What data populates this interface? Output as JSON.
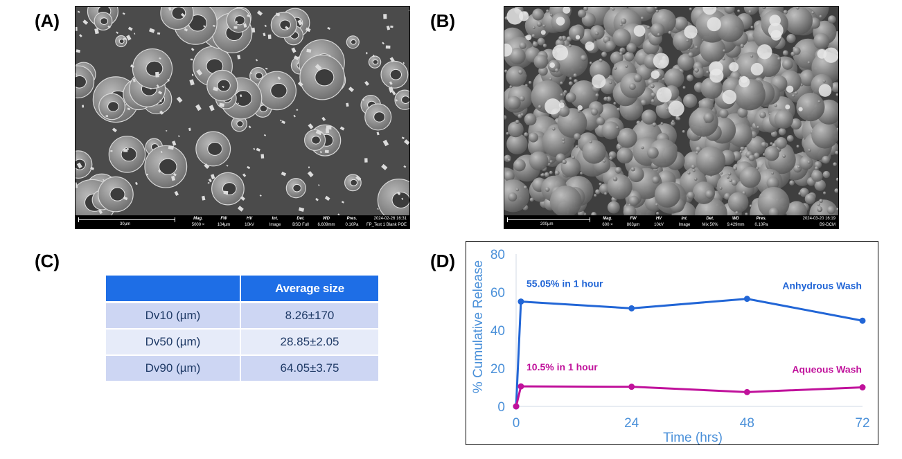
{
  "panels": {
    "a": "(A)",
    "b": "(B)",
    "c": "(C)",
    "d": "(D)"
  },
  "sem_a": {
    "scale_label": "30µm",
    "fields": [
      {
        "label": "Mag.",
        "value": "5000 ×"
      },
      {
        "label": "FW",
        "value": "104µm"
      },
      {
        "label": "HV",
        "value": "10kV"
      },
      {
        "label": "Int.",
        "value": "Image"
      },
      {
        "label": "Det.",
        "value": "BSD Full"
      },
      {
        "label": "WD",
        "value": "6.609mm"
      },
      {
        "label": "Pres.",
        "value": "0.10Pa"
      }
    ],
    "timestamp": "2024-02-26 16:31",
    "sample": "FP_Test 1 Blank POE"
  },
  "sem_b": {
    "scale_label": "200µm",
    "fields": [
      {
        "label": "Mag.",
        "value": "600 ×"
      },
      {
        "label": "FW",
        "value": "863µm"
      },
      {
        "label": "HV",
        "value": "10kV"
      },
      {
        "label": "Int.",
        "value": "Image"
      },
      {
        "label": "Det.",
        "value": "Mix 50%"
      },
      {
        "label": "WD",
        "value": "9.429mm"
      },
      {
        "label": "Pres.",
        "value": "0.10Pa"
      }
    ],
    "timestamp": "2024-03-20 16:19",
    "sample": "B9-DCM"
  },
  "size_table": {
    "header": [
      "",
      "Average size"
    ],
    "rows": [
      [
        "Dv10 (µm)",
        "8.26±170"
      ],
      [
        "Dv50 (µm)",
        "28.85±2.05"
      ],
      [
        "Dv90 (µm)",
        "64.05±3.75"
      ]
    ]
  },
  "chart_data": {
    "type": "line",
    "xlabel": "Time (hrs)",
    "ylabel": "% Cumulative Release",
    "xlim": [
      0,
      72
    ],
    "ylim": [
      0,
      80
    ],
    "xticks": [
      0,
      24,
      48,
      72
    ],
    "yticks": [
      0,
      20,
      40,
      60,
      80
    ],
    "grid": false,
    "series": [
      {
        "name": "Anhydrous Wash",
        "color": "#2266d6",
        "x": [
          0,
          1,
          24,
          48,
          72
        ],
        "y": [
          0,
          55.05,
          51.5,
          56.5,
          45
        ]
      },
      {
        "name": "Aqueous Wash",
        "color": "#c0119b",
        "x": [
          0,
          1,
          24,
          48,
          72
        ],
        "y": [
          0,
          10.5,
          10.3,
          7.5,
          10
        ]
      }
    ],
    "annotations": [
      {
        "text": "55.05% in 1 hour",
        "series": 0
      },
      {
        "text": "10.5% in 1 hour",
        "series": 1
      }
    ]
  }
}
